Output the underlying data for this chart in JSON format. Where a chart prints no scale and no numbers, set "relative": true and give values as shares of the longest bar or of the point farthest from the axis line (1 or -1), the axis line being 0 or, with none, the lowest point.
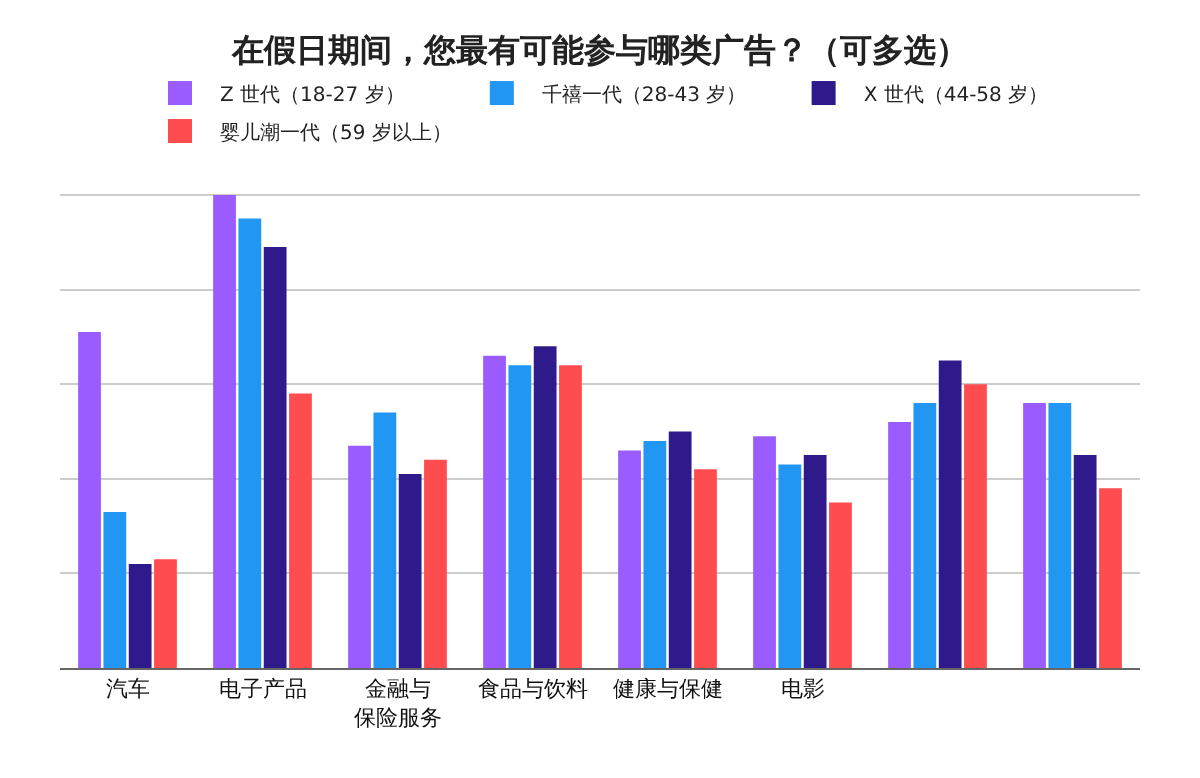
{
  "chart_data": {
    "type": "bar",
    "title": "在假日期间，您最有可能参与哪类广告？（可多选）",
    "relative": true,
    "grid": "y",
    "legend": "top",
    "categories": [
      "汽车",
      "电子产品",
      "金融与保险服务",
      "食品与饮料",
      "健康与保健",
      "电影",
      null,
      null
    ],
    "series": [
      {
        "name": "Z 世代（18-27 岁）",
        "color": "#9b5cff",
        "values": [
          0.71,
          1.0,
          0.47,
          0.66,
          0.46,
          0.49,
          0.52,
          0.56
        ]
      },
      {
        "name": "千禧一代（28-43 岁）",
        "color": "#2196f3",
        "values": [
          0.33,
          0.95,
          0.54,
          0.64,
          0.48,
          0.43,
          0.56,
          0.56
        ]
      },
      {
        "name": "X 世代（44-58 岁）",
        "color": "#2e1a8a",
        "values": [
          0.22,
          0.89,
          0.41,
          0.68,
          0.5,
          0.45,
          0.65,
          0.45
        ]
      },
      {
        "name": "婴儿潮一代（59 岁以上）",
        "color": "#ff4d4f",
        "values": [
          0.23,
          0.58,
          0.44,
          0.64,
          0.42,
          0.35,
          0.6,
          0.38
        ]
      }
    ]
  }
}
